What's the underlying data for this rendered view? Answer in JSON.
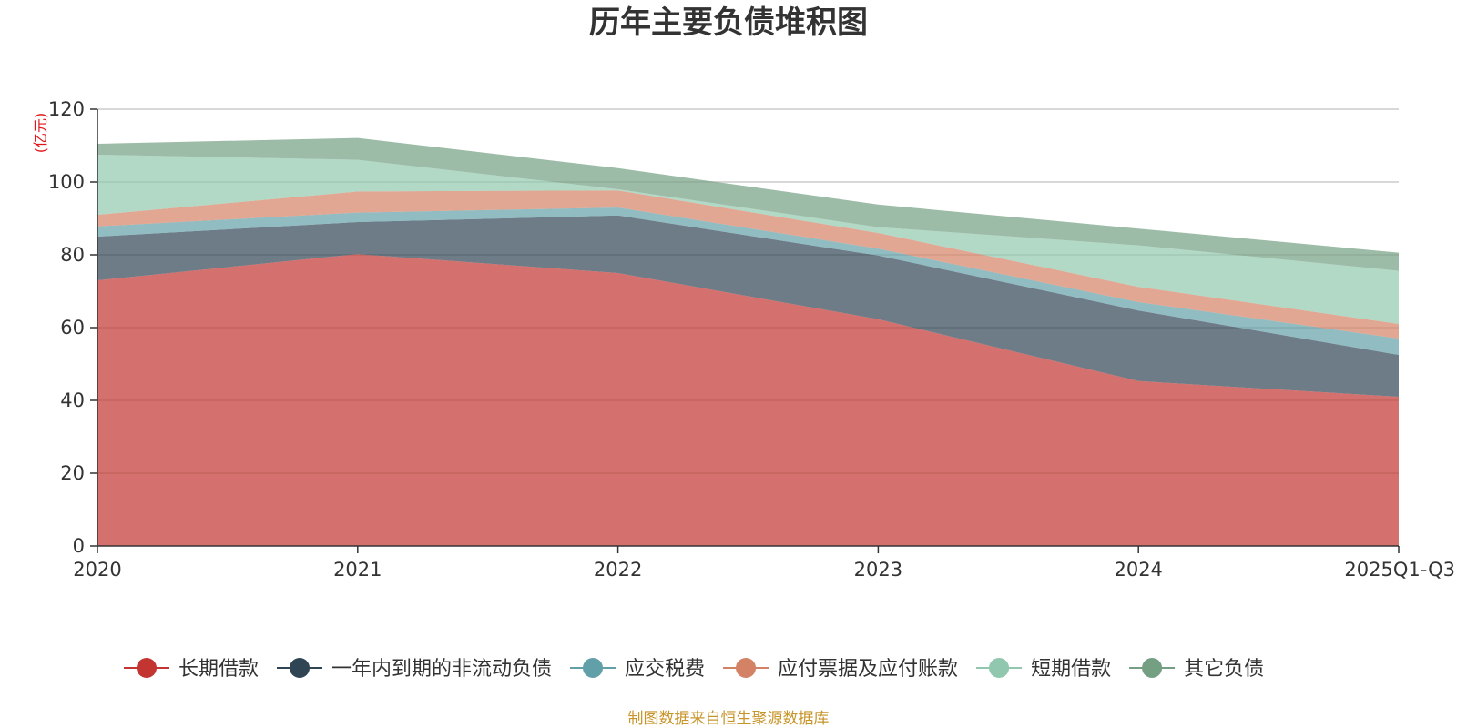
{
  "chart_data": {
    "type": "area",
    "stacked": true,
    "title": "历年主要负债堆积图",
    "unit_label": "(亿元)",
    "categories": [
      "2020",
      "2021",
      "2022",
      "2023",
      "2024",
      "2025Q1-Q3"
    ],
    "yticks": [
      "0",
      "20",
      "40",
      "60",
      "80",
      "100",
      "120"
    ],
    "ylim": [
      0,
      120
    ],
    "grid": true,
    "legend_position": "bottom",
    "series": [
      {
        "name": "长期借款",
        "color": "#c23531",
        "values": [
          73.0,
          80.2,
          75.0,
          62.3,
          45.3,
          41.0
        ]
      },
      {
        "name": "一年内到期的非流动负债",
        "color": "#2f4554",
        "values": [
          12.0,
          8.8,
          15.8,
          17.5,
          19.4,
          11.5
        ]
      },
      {
        "name": "应交税费",
        "color": "#61a0a8",
        "values": [
          2.8,
          2.6,
          2.2,
          1.9,
          2.3,
          4.5
        ]
      },
      {
        "name": "应付票据及应付账款",
        "color": "#d48265",
        "values": [
          3.2,
          5.8,
          4.7,
          4.3,
          4.2,
          4.0
        ]
      },
      {
        "name": "短期借款",
        "color": "#91c7ae",
        "values": [
          16.5,
          8.7,
          0.3,
          1.6,
          11.4,
          14.6
        ]
      },
      {
        "name": "其它负债",
        "color": "#749f83",
        "values": [
          3.0,
          6.0,
          5.8,
          6.2,
          4.6,
          5.0
        ]
      }
    ]
  },
  "footer": {
    "source": "制图数据来自恒生聚源数据库"
  }
}
